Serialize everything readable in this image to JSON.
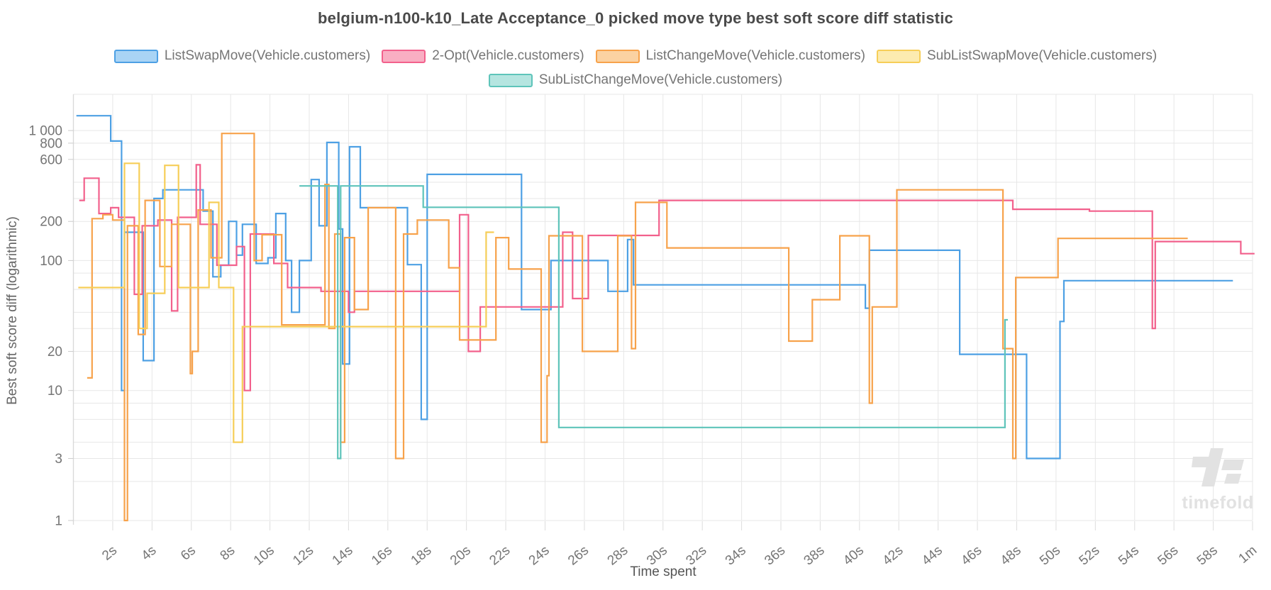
{
  "title": "belgium-n100-k10_Late Acceptance_0 picked move type best soft score diff statistic",
  "legend": [
    {
      "label": "ListSwapMove(Vehicle.customers)",
      "color": "#4DA0E4",
      "fill": "#A9D4F5"
    },
    {
      "label": "2-Opt(Vehicle.customers)",
      "color": "#F2608C",
      "fill": "#F9AEC3"
    },
    {
      "label": "ListChangeMove(Vehicle.customers)",
      "color": "#F7A24B",
      "fill": "#FBD2A2"
    },
    {
      "label": "SubListSwapMove(Vehicle.customers)",
      "color": "#F6CE58",
      "fill": "#FCEBB0"
    },
    {
      "label": "SubListChangeMove(Vehicle.customers)",
      "color": "#5EC4BA",
      "fill": "#B5E5E0"
    }
  ],
  "axes": {
    "x_title": "Time spent",
    "y_title": "Best soft score diff (logarithmic)",
    "x_tick_seconds": [
      2,
      4,
      6,
      8,
      10,
      12,
      14,
      16,
      18,
      20,
      22,
      24,
      26,
      28,
      30,
      32,
      34,
      36,
      38,
      40,
      42,
      44,
      46,
      48,
      50,
      52,
      54,
      56,
      58,
      60
    ],
    "x_tick_labels": [
      "2s",
      "4s",
      "6s",
      "8s",
      "10s",
      "12s",
      "14s",
      "16s",
      "18s",
      "20s",
      "22s",
      "24s",
      "26s",
      "28s",
      "30s",
      "32s",
      "34s",
      "36s",
      "38s",
      "40s",
      "42s",
      "44s",
      "46s",
      "48s",
      "50s",
      "52s",
      "54s",
      "56s",
      "58s",
      "1m"
    ],
    "y_tick_labels": [
      {
        "v": 1000,
        "label": "1 000"
      },
      {
        "v": 800,
        "label": "800"
      },
      {
        "v": 600,
        "label": "600"
      },
      {
        "v": 200,
        "label": "200"
      },
      {
        "v": 100,
        "label": "100"
      },
      {
        "v": 20,
        "label": "20"
      },
      {
        "v": 10,
        "label": "10"
      },
      {
        "v": 3,
        "label": "3"
      },
      {
        "v": 1,
        "label": "1"
      }
    ],
    "y_grid_values": [
      1,
      2,
      3,
      4,
      6,
      8,
      10,
      20,
      30,
      40,
      60,
      80,
      100,
      200,
      300,
      400,
      600,
      800,
      1000
    ]
  },
  "watermark": {
    "text": "timefold"
  },
  "chart_data": {
    "type": "line",
    "step": true,
    "title": "belgium-n100-k10_Late Acceptance_0 picked move type best soft score diff statistic",
    "xlabel": "Time spent",
    "ylabel": "Best soft score diff (logarithmic)",
    "x_unit": "seconds",
    "x_range": [
      0,
      60
    ],
    "y_scale": "log",
    "y_range": [
      1,
      2000
    ],
    "legend_position": "top",
    "grid": true,
    "series": [
      {
        "name": "ListSwapMove(Vehicle.customers)",
        "color": "#4DA0E4",
        "points": [
          [
            0.15,
            1300
          ],
          [
            1.9,
            830
          ],
          [
            2.45,
            10
          ],
          [
            2.6,
            165
          ],
          [
            3.55,
            17
          ],
          [
            4.1,
            300
          ],
          [
            4.55,
            350
          ],
          [
            6.6,
            240
          ],
          [
            7.1,
            75
          ],
          [
            7.5,
            92
          ],
          [
            7.9,
            200
          ],
          [
            8.3,
            110
          ],
          [
            8.6,
            190
          ],
          [
            9.3,
            95
          ],
          [
            9.9,
            105
          ],
          [
            10.3,
            230
          ],
          [
            10.8,
            100
          ],
          [
            11.1,
            40
          ],
          [
            11.5,
            100
          ],
          [
            12.1,
            420
          ],
          [
            12.5,
            185
          ],
          [
            12.9,
            810
          ],
          [
            13.5,
            175
          ],
          [
            13.7,
            16
          ],
          [
            14.05,
            750
          ],
          [
            14.6,
            255
          ],
          [
            17.0,
            93
          ],
          [
            17.7,
            6
          ],
          [
            18.0,
            460
          ],
          [
            22.8,
            42
          ],
          [
            24.3,
            100
          ],
          [
            27.2,
            58
          ],
          [
            28.2,
            145
          ],
          [
            28.5,
            65
          ],
          [
            40.3,
            43
          ],
          [
            40.5,
            120
          ],
          [
            45.1,
            19
          ],
          [
            48.5,
            3
          ],
          [
            50.2,
            34
          ],
          [
            50.4,
            70
          ]
        ],
        "end_t": 59.0
      },
      {
        "name": "2-Opt(Vehicle.customers)",
        "color": "#F2608C",
        "points": [
          [
            0.3,
            290
          ],
          [
            0.55,
            430
          ],
          [
            1.3,
            230
          ],
          [
            1.9,
            255
          ],
          [
            2.3,
            215
          ],
          [
            3.1,
            55
          ],
          [
            3.5,
            185
          ],
          [
            4.3,
            205
          ],
          [
            5.0,
            41
          ],
          [
            5.3,
            215
          ],
          [
            6.25,
            545
          ],
          [
            6.45,
            190
          ],
          [
            7.3,
            92
          ],
          [
            8.3,
            128
          ],
          [
            8.7,
            10
          ],
          [
            9.0,
            160
          ],
          [
            10.2,
            95
          ],
          [
            10.9,
            62
          ],
          [
            12.6,
            58
          ],
          [
            14.0,
            40
          ],
          [
            14.3,
            58
          ],
          [
            19.65,
            225
          ],
          [
            20.1,
            20
          ],
          [
            20.7,
            44
          ],
          [
            24.9,
            165
          ],
          [
            25.4,
            51
          ],
          [
            26.2,
            156
          ],
          [
            29.8,
            290
          ],
          [
            47.8,
            248
          ],
          [
            51.7,
            240
          ],
          [
            54.9,
            30
          ],
          [
            55.05,
            140
          ],
          [
            59.4,
            113
          ]
        ],
        "end_t": 60.1
      },
      {
        "name": "ListChangeMove(Vehicle.customers)",
        "color": "#F7A24B",
        "points": [
          [
            0.7,
            12.5
          ],
          [
            0.95,
            210
          ],
          [
            1.5,
            225
          ],
          [
            2.0,
            205
          ],
          [
            2.6,
            1
          ],
          [
            2.75,
            185
          ],
          [
            3.3,
            27
          ],
          [
            3.65,
            290
          ],
          [
            4.4,
            90
          ],
          [
            5.0,
            190
          ],
          [
            5.95,
            13.5
          ],
          [
            6.05,
            20
          ],
          [
            6.35,
            245
          ],
          [
            7.0,
            105
          ],
          [
            7.55,
            950
          ],
          [
            9.2,
            100
          ],
          [
            9.6,
            158
          ],
          [
            10.6,
            32
          ],
          [
            12.8,
            385
          ],
          [
            13.0,
            30
          ],
          [
            13.3,
            160
          ],
          [
            13.6,
            4
          ],
          [
            13.8,
            150
          ],
          [
            14.3,
            42
          ],
          [
            15.0,
            255
          ],
          [
            16.4,
            3
          ],
          [
            16.8,
            160
          ],
          [
            17.5,
            205
          ],
          [
            19.1,
            88
          ],
          [
            19.65,
            24.5
          ],
          [
            21.5,
            150
          ],
          [
            22.15,
            86
          ],
          [
            23.8,
            4
          ],
          [
            24.1,
            13
          ],
          [
            24.2,
            155
          ],
          [
            25.9,
            20
          ],
          [
            27.7,
            155
          ],
          [
            28.4,
            21
          ],
          [
            28.6,
            280
          ],
          [
            30.2,
            125
          ],
          [
            36.4,
            24
          ],
          [
            37.6,
            50
          ],
          [
            39.0,
            155
          ],
          [
            40.5,
            8
          ],
          [
            40.65,
            44
          ],
          [
            41.9,
            350
          ],
          [
            47.3,
            21
          ],
          [
            47.8,
            3
          ],
          [
            47.95,
            74
          ],
          [
            50.1,
            148
          ]
        ],
        "end_t": 56.7
      },
      {
        "name": "SubListSwapMove(Vehicle.customers)",
        "color": "#F6CE58",
        "points": [
          [
            0.25,
            62
          ],
          [
            2.6,
            560
          ],
          [
            3.35,
            30
          ],
          [
            3.75,
            56
          ],
          [
            4.65,
            540
          ],
          [
            5.35,
            62
          ],
          [
            6.9,
            280
          ],
          [
            7.4,
            62
          ],
          [
            8.15,
            4
          ],
          [
            8.6,
            31
          ],
          [
            21.0,
            165
          ]
        ],
        "end_t": 21.4
      },
      {
        "name": "SubListChangeMove(Vehicle.customers)",
        "color": "#5EC4BA",
        "points": [
          [
            11.5,
            375
          ],
          [
            13.45,
            3
          ],
          [
            13.6,
            375
          ],
          [
            17.8,
            257
          ],
          [
            24.7,
            5.2
          ],
          [
            47.4,
            35
          ]
        ],
        "end_t": 47.55
      }
    ]
  }
}
